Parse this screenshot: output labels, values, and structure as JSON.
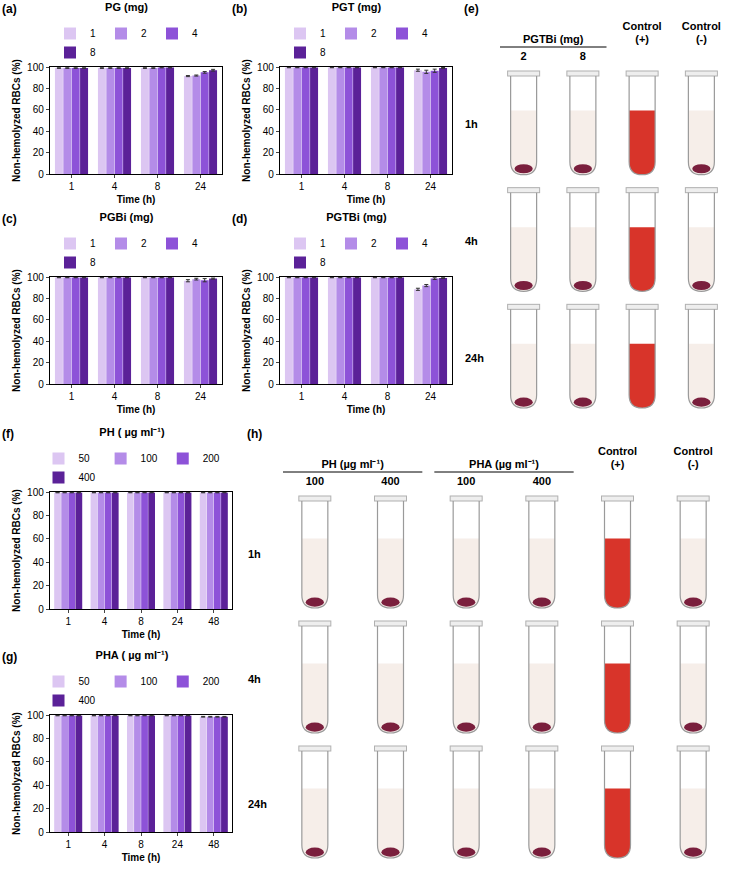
{
  "chart_data": [
    {
      "type": "bar",
      "panel_label": "(a)",
      "title": "PG (mg)",
      "x_label": "Time (h)",
      "y_label": "Non-hemolyzed RBCs (%)",
      "categories": [
        "1",
        "4",
        "8",
        "24"
      ],
      "ylim": [
        0,
        100
      ],
      "yticks": [
        0,
        20,
        40,
        60,
        80,
        100
      ],
      "grid": false,
      "legend": "top",
      "series": [
        {
          "name": "1",
          "color": "#dcc6f2",
          "values": [
            99,
            99,
            99,
            91.5
          ],
          "errors": [
            0.3,
            0.3,
            0.3,
            0.5
          ]
        },
        {
          "name": "2",
          "color": "#b48ce8",
          "values": [
            99,
            99,
            99,
            92
          ],
          "errors": [
            0.3,
            0.3,
            0.3,
            0.5
          ]
        },
        {
          "name": "4",
          "color": "#8d52d8",
          "values": [
            99,
            99,
            99.5,
            95
          ],
          "errors": [
            0.3,
            0.3,
            0.3,
            0.8
          ]
        },
        {
          "name": "8",
          "color": "#5b2198",
          "values": [
            99,
            99,
            99.5,
            97
          ],
          "errors": [
            0.3,
            0.3,
            0.3,
            0.8
          ]
        }
      ]
    },
    {
      "type": "bar",
      "panel_label": "(b)",
      "title": "PGT (mg)",
      "x_label": "Time (h)",
      "y_label": "Non-hemolyzed RBCs (%)",
      "categories": [
        "1",
        "4",
        "8",
        "24"
      ],
      "ylim": [
        0,
        100
      ],
      "yticks": [
        0,
        20,
        40,
        60,
        80,
        100
      ],
      "grid": false,
      "legend": "top",
      "series": [
        {
          "name": "1",
          "color": "#dcc6f2",
          "values": [
            99.5,
            99.5,
            99.5,
            97
          ],
          "errors": [
            0.2,
            0.2,
            0.2,
            1
          ]
        },
        {
          "name": "2",
          "color": "#b48ce8",
          "values": [
            99.5,
            99.5,
            99.5,
            95.5
          ],
          "errors": [
            0.2,
            0.2,
            0.2,
            1.5
          ]
        },
        {
          "name": "4",
          "color": "#8d52d8",
          "values": [
            99.5,
            99.5,
            99.5,
            96.5
          ],
          "errors": [
            0.2,
            0.2,
            0.2,
            1.5
          ]
        },
        {
          "name": "8",
          "color": "#5b2198",
          "values": [
            99.5,
            99.5,
            99.5,
            99
          ],
          "errors": [
            0.2,
            0.2,
            0.2,
            0.5
          ]
        }
      ]
    },
    {
      "type": "bar",
      "panel_label": "(c)",
      "title": "PGBi (mg)",
      "x_label": "Time (h)",
      "y_label": "Non-hemolyzed RBCs (%)",
      "categories": [
        "1",
        "4",
        "8",
        "24"
      ],
      "ylim": [
        0,
        100
      ],
      "yticks": [
        0,
        20,
        40,
        60,
        80,
        100
      ],
      "grid": false,
      "legend": "top",
      "series": [
        {
          "name": "1",
          "color": "#dcc6f2",
          "values": [
            99.5,
            99.5,
            99.5,
            96.5
          ],
          "errors": [
            0.2,
            0.2,
            0.2,
            1
          ]
        },
        {
          "name": "2",
          "color": "#b48ce8",
          "values": [
            99.5,
            99.5,
            99.5,
            98
          ],
          "errors": [
            0.2,
            0.2,
            0.2,
            0.8
          ]
        },
        {
          "name": "4",
          "color": "#8d52d8",
          "values": [
            99.5,
            99.5,
            99.5,
            97
          ],
          "errors": [
            0.2,
            0.2,
            0.2,
            1.5
          ]
        },
        {
          "name": "8",
          "color": "#5b2198",
          "values": [
            99.5,
            99.5,
            99.5,
            98.5
          ],
          "errors": [
            0.2,
            0.2,
            0.2,
            0.5
          ]
        }
      ]
    },
    {
      "type": "bar",
      "panel_label": "(d)",
      "title": "PGTBi (mg)",
      "x_label": "Time (h)",
      "y_label": "Non-hemolyzed RBCs (%)",
      "categories": [
        "1",
        "4",
        "8",
        "24"
      ],
      "ylim": [
        0,
        100
      ],
      "yticks": [
        0,
        20,
        40,
        60,
        80,
        100
      ],
      "grid": false,
      "legend": "top",
      "series": [
        {
          "name": "1",
          "color": "#dcc6f2",
          "values": [
            99.5,
            99.5,
            99.5,
            88.5
          ],
          "errors": [
            0.2,
            0.2,
            0.2,
            1
          ]
        },
        {
          "name": "2",
          "color": "#b48ce8",
          "values": [
            99.5,
            99.5,
            99.5,
            92
          ],
          "errors": [
            0.2,
            0.2,
            0.2,
            1
          ]
        },
        {
          "name": "4",
          "color": "#8d52d8",
          "values": [
            99.5,
            99.5,
            99.5,
            98.5
          ],
          "errors": [
            0.2,
            0.2,
            0.2,
            0.8
          ]
        },
        {
          "name": "8",
          "color": "#5b2198",
          "values": [
            99.5,
            99.5,
            99.5,
            99
          ],
          "errors": [
            0.2,
            0.2,
            0.2,
            0.3
          ]
        }
      ]
    },
    {
      "type": "bar",
      "panel_label": "(f)",
      "title": "PH ( µg ml⁻¹)",
      "x_label": "Time (h)",
      "y_label": "Non-hemolyzed RBCs (%)",
      "categories": [
        "1",
        "4",
        "8",
        "24",
        "48"
      ],
      "ylim": [
        0,
        100
      ],
      "yticks": [
        0,
        20,
        40,
        60,
        80,
        100
      ],
      "grid": false,
      "legend": "top",
      "series": [
        {
          "name": "50",
          "color": "#dcc6f2",
          "values": [
            99.5,
            99.5,
            99.5,
            99.5,
            99.5
          ],
          "errors": [
            0.2,
            0.2,
            0.2,
            0.2,
            0.2
          ]
        },
        {
          "name": "100",
          "color": "#b48ce8",
          "values": [
            99.5,
            99.5,
            99.5,
            99.5,
            99.5
          ],
          "errors": [
            0.2,
            0.2,
            0.2,
            0.2,
            0.2
          ]
        },
        {
          "name": "200",
          "color": "#8d52d8",
          "values": [
            99.5,
            99.5,
            99.5,
            99.5,
            99.5
          ],
          "errors": [
            0.2,
            0.2,
            0.2,
            0.2,
            0.2
          ]
        },
        {
          "name": "400",
          "color": "#5b2198",
          "values": [
            99.5,
            99.5,
            99.5,
            99.5,
            99.5
          ],
          "errors": [
            0.2,
            0.2,
            0.2,
            0.2,
            0.2
          ]
        }
      ]
    },
    {
      "type": "bar",
      "panel_label": "(g)",
      "title": "PHA ( µg ml⁻¹)",
      "x_label": "Time (h)",
      "y_label": "Non-hemolyzed RBCs (%)",
      "categories": [
        "1",
        "4",
        "8",
        "24",
        "48"
      ],
      "ylim": [
        0,
        100
      ],
      "yticks": [
        0,
        20,
        40,
        60,
        80,
        100
      ],
      "grid": false,
      "legend": "top",
      "series": [
        {
          "name": "50",
          "color": "#dcc6f2",
          "values": [
            99.5,
            99.5,
            99.5,
            99.5,
            98.5
          ],
          "errors": [
            0.2,
            0.2,
            0.2,
            0.2,
            0.3
          ]
        },
        {
          "name": "100",
          "color": "#b48ce8",
          "values": [
            99.5,
            99.5,
            99.5,
            99.5,
            98.5
          ],
          "errors": [
            0.2,
            0.2,
            0.2,
            0.2,
            0.3
          ]
        },
        {
          "name": "200",
          "color": "#8d52d8",
          "values": [
            99.5,
            99.5,
            99.5,
            99.5,
            98.5
          ],
          "errors": [
            0.2,
            0.2,
            0.2,
            0.2,
            0.3
          ]
        },
        {
          "name": "400",
          "color": "#5b2198",
          "values": [
            99.5,
            99.5,
            99.5,
            99.5,
            98.5
          ],
          "errors": [
            0.2,
            0.2,
            0.2,
            0.2,
            0.3
          ]
        }
      ]
    }
  ],
  "photo_panels": [
    {
      "panel_label": "(e)",
      "rows": [
        "1h",
        "4h",
        "24h"
      ],
      "column_groups": [
        {
          "title": "PGTBi (mg)",
          "columns": [
            "2",
            "8"
          ]
        },
        {
          "title": "Control (+)"
        },
        {
          "title": "Control (-)"
        }
      ]
    },
    {
      "panel_label": "(h)",
      "rows": [
        "1h",
        "4h",
        "24h"
      ],
      "column_groups": [
        {
          "title": "PH (µg ml⁻¹)",
          "columns": [
            "100",
            "400"
          ]
        },
        {
          "title": "PHA (µg ml⁻¹)",
          "columns": [
            "100",
            "400"
          ]
        },
        {
          "title": "Control (+)"
        },
        {
          "title": "Control (-)"
        }
      ]
    }
  ]
}
